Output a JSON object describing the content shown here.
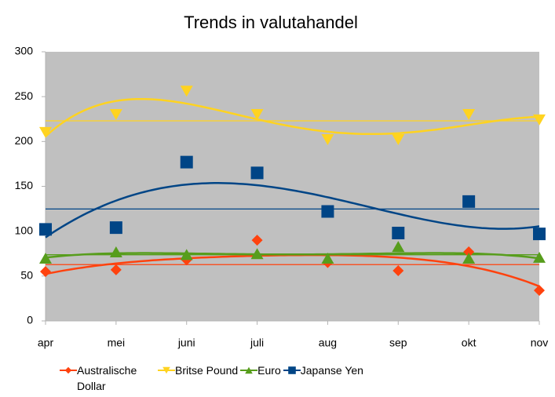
{
  "chart_data": {
    "type": "scatter-trend",
    "title": "Trends in valutahandel",
    "categories": [
      "apr",
      "mei",
      "juni",
      "juli",
      "aug",
      "sep",
      "okt",
      "nov"
    ],
    "series": [
      {
        "name": "Australische Dollar",
        "color": "#ff420e",
        "marker": "diamond",
        "values": [
          55,
          57,
          68,
          90,
          65,
          56,
          77,
          34
        ]
      },
      {
        "name": "Britse Pound",
        "color": "#ffd320",
        "marker": "triangle-down",
        "values": [
          210,
          230,
          256,
          230,
          202,
          202,
          230,
          224
        ]
      },
      {
        "name": "Euro",
        "color": "#579d1c",
        "marker": "triangle-up",
        "values": [
          70,
          77,
          74,
          75,
          70,
          83,
          70,
          71
        ]
      },
      {
        "name": "Japanse Yen",
        "color": "#004586",
        "marker": "square",
        "values": [
          102,
          104,
          177,
          165,
          122,
          98,
          133,
          97
        ]
      }
    ],
    "ylim": [
      0,
      300
    ],
    "yticks": [
      0,
      50,
      100,
      150,
      200,
      250,
      300
    ],
    "trendline": "polynomial",
    "trendline_degree": 4,
    "mean_line": true,
    "plot_background": "#c0c0c0",
    "legend": "bottom"
  }
}
